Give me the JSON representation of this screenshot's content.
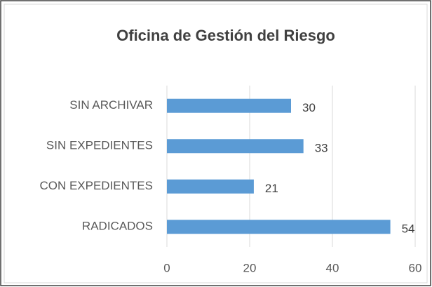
{
  "chart_data": {
    "type": "bar",
    "orientation": "horizontal",
    "title": "Oficina de Gestión del Riesgo",
    "categories": [
      "SIN ARCHIVAR",
      "SIN EXPEDIENTES",
      "CON EXPEDIENTES",
      "RADICADOS"
    ],
    "values": [
      30,
      33,
      21,
      54
    ],
    "color": "#5b9bd5",
    "xlim": [
      0,
      60
    ],
    "xticks": [
      0,
      20,
      40,
      60
    ],
    "grid": true
  }
}
